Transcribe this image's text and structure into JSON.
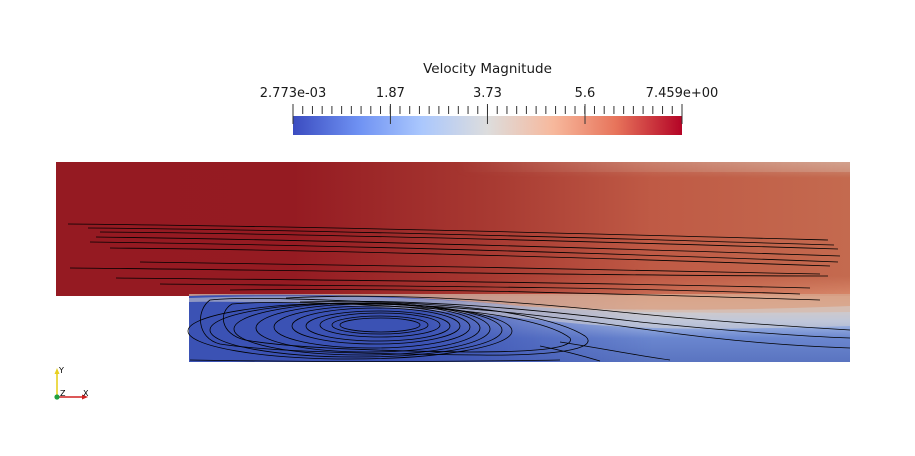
{
  "colorbar": {
    "title": "Velocity Magnitude",
    "min_label": "2.773e-03",
    "tick_labels": [
      "2.773e-03",
      "1.87",
      "3.73",
      "5.6",
      "7.459e+00"
    ],
    "tick_values": [
      0.002773,
      1.87,
      3.73,
      5.6,
      7.459
    ],
    "range": [
      0.002773,
      7.459
    ],
    "colormap": [
      "#3b4cc0",
      "#6f92f3",
      "#aac7fd",
      "#dddddd",
      "#f7b89c",
      "#e7745b",
      "#b40426"
    ]
  },
  "orientation_axes": {
    "x_label": "X",
    "y_label": "Y",
    "z_label": "Z"
  },
  "colors": {
    "background": "#ffffff",
    "streamline": "#000000",
    "high_velocity": "#9a1a1f",
    "low_velocity": "#3b52b4"
  }
}
